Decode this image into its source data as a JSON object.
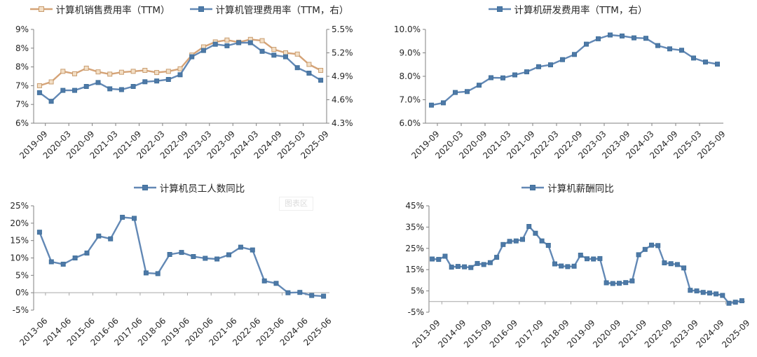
{
  "page": {
    "background": "#ffffff"
  },
  "tooltip": {
    "text": "图表区"
  },
  "colors": {
    "orange": {
      "line": "#D5A377",
      "marker_fill": "#F3DFC6",
      "marker_stroke": "#C99C6E"
    },
    "blue": {
      "line": "#6288B5",
      "marker_fill": "#4E79A7",
      "marker_stroke": "#41719C"
    },
    "axis": "#808080",
    "zero_line": "#A6A6A6",
    "text": "#262626"
  },
  "chart_data": [
    {
      "id": "sales-admin-expense-ratio",
      "type": "line",
      "label_every": 2,
      "category_axis_at": null,
      "x_tick_labels": [
        "2019-09",
        "2020-03",
        "2020-09",
        "2021-03",
        "2021-09",
        "2022-03",
        "2022-09",
        "2023-03",
        "2023-09",
        "2024-03",
        "2024-09",
        "2025-03",
        "2025-09"
      ],
      "left_axis": {
        "min": 6,
        "max": 9,
        "tick_labels": [
          "9%",
          "8%",
          "8%",
          "7%",
          "7%",
          "6%"
        ]
      },
      "right_axis": {
        "min": 4.3,
        "max": 5.5,
        "tick_labels": [
          "5.5%",
          "5.2%",
          "4.9%",
          "4.6%",
          "4.3%"
        ]
      },
      "series": [
        {
          "name": "计算机销售费用率（TTM）",
          "axis": "left",
          "color": "orange",
          "values": [
            7.2,
            7.32,
            7.66,
            7.58,
            7.76,
            7.64,
            7.57,
            7.63,
            7.66,
            7.69,
            7.62,
            7.66,
            7.74,
            8.18,
            8.44,
            8.6,
            8.66,
            8.59,
            8.68,
            8.64,
            8.36,
            8.25,
            8.21,
            7.88,
            7.69
          ]
        },
        {
          "name": "计算机管理费用率（TTM，右）",
          "axis": "right",
          "color": "blue",
          "values": [
            4.69,
            4.58,
            4.72,
            4.72,
            4.77,
            4.82,
            4.74,
            4.73,
            4.77,
            4.83,
            4.84,
            4.86,
            4.92,
            5.15,
            5.23,
            5.31,
            5.29,
            5.33,
            5.33,
            5.22,
            5.17,
            5.15,
            5.01,
            4.94,
            4.85
          ]
        }
      ]
    },
    {
      "id": "rnd-expense-ratio",
      "type": "line",
      "label_every": 2,
      "category_axis_at": null,
      "x_tick_labels": [
        "2019-09",
        "2020-03",
        "2020-09",
        "2021-03",
        "2021-09",
        "2022-03",
        "2022-09",
        "2023-03",
        "2023-09",
        "2024-03",
        "2024-09",
        "2025-03",
        "2025-09"
      ],
      "left_axis": {
        "min": 6,
        "max": 10,
        "tick_labels": [
          "10.0%",
          "9.0%",
          "8.0%",
          "7.0%",
          "6.0%"
        ]
      },
      "right_axis": null,
      "series": [
        {
          "name": "计算机研发费用率（TTM，右）",
          "axis": "left",
          "color": "blue",
          "values": [
            6.77,
            6.87,
            7.31,
            7.35,
            7.62,
            7.94,
            7.93,
            8.06,
            8.19,
            8.41,
            8.49,
            8.71,
            8.93,
            9.37,
            9.6,
            9.76,
            9.72,
            9.64,
            9.62,
            9.31,
            9.17,
            9.11,
            8.78,
            8.61,
            8.52
          ]
        }
      ]
    },
    {
      "id": "headcount-yoy",
      "type": "line",
      "label_every": 2,
      "category_axis_at": 0,
      "x_tick_labels": [
        "2013-06",
        "2014-06",
        "2015-06",
        "2016-06",
        "2017-06",
        "2018-06",
        "2019-06",
        "2020-06",
        "2021-06",
        "2022-06",
        "2023-06",
        "2024-06",
        "2025-06"
      ],
      "left_axis": {
        "min": -5,
        "max": 25,
        "tick_labels": [
          "25%",
          "20%",
          "15%",
          "10%",
          "5%",
          "0%",
          "-5%"
        ]
      },
      "right_axis": null,
      "series": [
        {
          "name": "计算机员工人数同比",
          "axis": "left",
          "color": "blue",
          "values": [
            17.4,
            8.9,
            8.2,
            10.0,
            11.4,
            16.3,
            15.5,
            21.7,
            21.4,
            5.7,
            5.5,
            11.0,
            11.6,
            10.4,
            9.9,
            9.7,
            10.9,
            13.1,
            12.3,
            3.4,
            2.7,
            0.0,
            0.1,
            -0.8,
            -1.0
          ]
        }
      ]
    },
    {
      "id": "salary-yoy",
      "type": "line",
      "label_every": 4,
      "category_axis_at": 0,
      "x_tick_labels": [
        "2013-09",
        "2014-09",
        "2015-09",
        "2016-09",
        "2017-09",
        "2018-09",
        "2019-09",
        "2020-09",
        "2021-09",
        "2022-09",
        "2023-09",
        "2024-09",
        "2025-09"
      ],
      "left_axis": {
        "min": -5,
        "max": 45,
        "tick_labels": [
          "45%",
          "35%",
          "25%",
          "15%",
          "5%",
          "-5%"
        ]
      },
      "right_axis": null,
      "series": [
        {
          "name": "计算机薪酬同比",
          "axis": "left",
          "color": "blue",
          "values": [
            20.0,
            19.8,
            21.3,
            16.2,
            16.5,
            16.3,
            16.0,
            17.9,
            17.4,
            18.3,
            20.8,
            26.8,
            28.3,
            28.5,
            29.2,
            35.3,
            32.1,
            28.5,
            26.4,
            17.7,
            16.7,
            16.4,
            16.6,
            21.8,
            20.1,
            20.0,
            20.2,
            8.8,
            8.5,
            8.6,
            8.9,
            9.7,
            22.0,
            24.5,
            26.5,
            26.3,
            18.2,
            17.8,
            17.4,
            15.8,
            5.3,
            5.0,
            4.3,
            4.0,
            3.6,
            2.9,
            -0.8,
            -0.3,
            0.4
          ]
        }
      ]
    }
  ]
}
